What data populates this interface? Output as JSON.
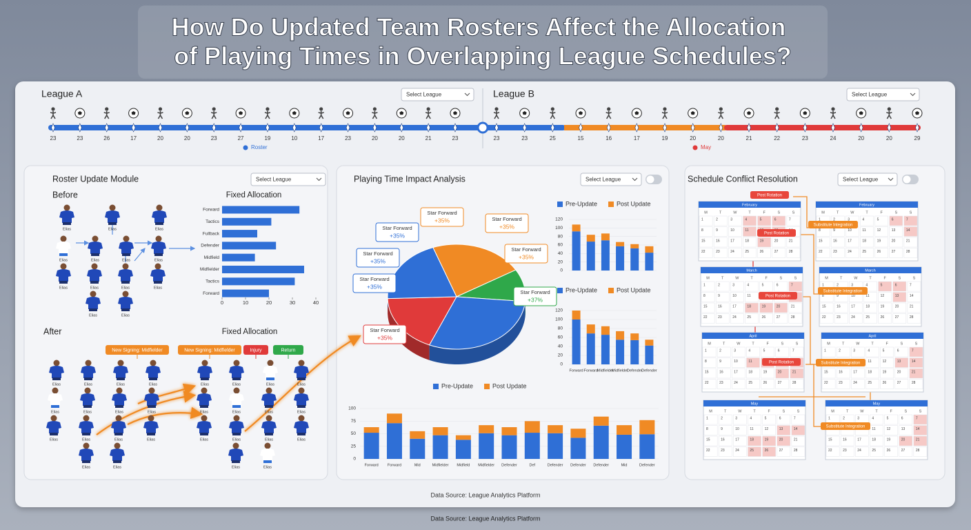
{
  "title": {
    "line1": "How Do Updated Team Rosters Affect the Allocation",
    "line2": "of Playing Times in Overlapping League Schedules?"
  },
  "leagues": [
    {
      "name": "League A",
      "select": "Select League",
      "timeline": [
        23,
        23,
        26,
        17,
        20,
        20,
        23,
        27,
        19,
        10,
        17,
        23,
        20,
        20,
        21,
        23
      ],
      "legend": "Roster",
      "legend_color": "#2f6fd6"
    },
    {
      "name": "League B",
      "select": "Select League",
      "timeline": [
        23,
        23,
        25,
        15,
        16,
        17,
        19,
        20,
        20,
        21,
        22,
        23,
        24,
        20,
        20,
        29
      ],
      "legend": "May",
      "legend_color": "#e03a3a"
    }
  ],
  "roster": {
    "title": "Roster Update Module",
    "select": "Select League",
    "before": {
      "label": "Before",
      "players": [
        "Elias",
        "Elias",
        "Elias",
        "Elias",
        "Elias",
        "Elias",
        "Elias",
        "Elias",
        "Elias",
        "Elias",
        "Elias",
        "Elias",
        "Elias"
      ]
    },
    "fixed_allocation": {
      "type": "bar",
      "orientation": "horizontal",
      "title": "Fixed Allocation",
      "categories": [
        "Forward",
        "Tactics",
        "Fullback",
        "Defender",
        "Midfield",
        "Midfielder",
        "Tactics",
        "Forward"
      ],
      "values": [
        33,
        21,
        15,
        23,
        14,
        35,
        31,
        20
      ],
      "color": "#2f6fd6",
      "xlim": [
        0,
        40
      ],
      "xticks": [
        0,
        10,
        20,
        30,
        40
      ]
    },
    "after": {
      "label": "After",
      "title": "Fixed Allocation",
      "tags": [
        {
          "text": "New Signing: Midfielder",
          "color": "#f08a24"
        },
        {
          "text": "New Signing: Midfielder",
          "color": "#f08a24"
        },
        {
          "text": "Injury",
          "color": "#e03a3a"
        },
        {
          "text": "Return",
          "color": "#2fa84a"
        }
      ],
      "players": [
        "Elias",
        "Elias",
        "Elias",
        "Elias",
        "Elias",
        "Elias",
        "Elias",
        "Elias",
        "Elias",
        "Elias",
        "Elias",
        "Elias",
        "Elias",
        "Elias",
        "Elias",
        "Elias",
        "Elias",
        "Elias",
        "Elias",
        "Elias",
        "Elias",
        "Elias",
        "Elias",
        "Elias",
        "Elias",
        "Elias",
        "Elias",
        "Elias"
      ]
    }
  },
  "impact": {
    "title": "Playing Time Impact Analysis",
    "select": "Select League",
    "pie": {
      "type": "pie",
      "values": [
        22,
        10,
        30,
        18,
        20
      ],
      "colors": [
        "#f08a24",
        "#2fa84a",
        "#2f6fd6",
        "#e03a3a",
        "#2f6fd6"
      ]
    },
    "callouts": {
      "labels": [
        "Star Forward",
        "Star Forward",
        "Star Forward",
        "Star Forward",
        "Star Forward",
        "Star Forward",
        "Star Forward",
        "Star Forward"
      ],
      "values": [
        35,
        35,
        35,
        35,
        35,
        35,
        37,
        35
      ],
      "value_labels": [
        "+35%",
        "+35%",
        "+35%",
        "+35%",
        "+35%",
        "+35%",
        "+37%",
        "+35%"
      ]
    },
    "charts": [
      {
        "type": "bar",
        "stacked": true,
        "categories": [
          null,
          null,
          null,
          null,
          null,
          null
        ],
        "ylim": [
          0,
          120
        ],
        "yticks": [
          0,
          20,
          40,
          60,
          80,
          100,
          120
        ],
        "series": [
          {
            "name": "Pre-Update",
            "color": "#2f6fd6",
            "values": [
              92,
              68,
              71,
              57,
              52,
              42
            ]
          },
          {
            "name": "Post Update",
            "color": "#f08a24",
            "values": [
              16,
              16,
              16,
              10,
              10,
              15
            ]
          }
        ]
      },
      {
        "type": "bar",
        "stacked": true,
        "categories": [
          "Forward",
          "Forward",
          "Midfielder",
          "Midfielder",
          "Defender",
          "Defender"
        ],
        "ylim": [
          0,
          120
        ],
        "yticks": [
          0,
          20,
          40,
          60,
          80,
          100,
          120
        ],
        "series": [
          {
            "name": "Pre-Update",
            "color": "#2f6fd6",
            "values": [
              100,
              69,
              66,
              55,
              54,
              42
            ]
          },
          {
            "name": "Post Update",
            "color": "#f08a24",
            "values": [
              20,
              20,
              19,
              19,
              15,
              13
            ]
          }
        ]
      },
      {
        "type": "bar",
        "stacked": true,
        "categories": [
          "Forward",
          "Forward",
          "Mid",
          "Midfielder",
          "Midfield",
          "Midfielder",
          "Defender",
          "Def",
          "Defender",
          "Defender",
          "Defender",
          "Mid",
          "Defender"
        ],
        "ylim": [
          0,
          100
        ],
        "yticks": [
          0,
          25,
          50,
          75,
          100
        ],
        "series": [
          {
            "name": "Pre-Update",
            "color": "#2f6fd6",
            "values": [
              52,
              71,
              40,
              47,
              38,
              51,
              47,
              52,
              51,
              42,
              66,
              48,
              49
            ]
          },
          {
            "name": "Post Update",
            "color": "#f08a24",
            "values": [
              11,
              19,
              15,
              16,
              9,
              16,
              16,
              23,
              16,
              18,
              18,
              19,
              28
            ]
          }
        ]
      }
    ]
  },
  "schedule": {
    "title": "Schedule Conflict Resolution",
    "select": "Select League",
    "weekdays": [
      "M",
      "T",
      "W",
      "T",
      "F",
      "S",
      "S"
    ],
    "days": [
      1,
      2,
      3,
      4,
      5,
      6,
      7,
      8,
      9,
      10,
      11,
      12,
      13,
      14,
      15,
      16,
      17,
      18,
      19,
      20,
      21,
      22,
      23,
      24,
      25,
      26,
      27,
      28
    ],
    "calendars": [
      {
        "month": "February",
        "highlight": [
          3,
          4,
          5,
          10,
          11,
          12,
          18
        ]
      },
      {
        "month": "February",
        "highlight": [
          5,
          6,
          13
        ]
      },
      {
        "month": "March",
        "highlight": [
          6,
          13,
          17,
          18,
          19
        ]
      },
      {
        "month": "March",
        "highlight": [
          4,
          5,
          12
        ]
      },
      {
        "month": "April",
        "highlight": [
          10,
          11,
          12,
          13,
          19,
          20
        ]
      },
      {
        "month": "April",
        "highlight": [
          6,
          12,
          13,
          20
        ]
      },
      {
        "month": "May",
        "highlight": [
          12,
          13,
          17,
          18,
          19,
          24,
          25
        ]
      },
      {
        "month": "May",
        "highlight": [
          6,
          13,
          19,
          20
        ]
      }
    ],
    "tags": {
      "rotation": "Post Rotation",
      "integration": "Substitute Integration"
    }
  },
  "footer": {
    "inner": "Data Source: League Analytics Platform",
    "outer": "Data Source: League Analytics Platform"
  }
}
